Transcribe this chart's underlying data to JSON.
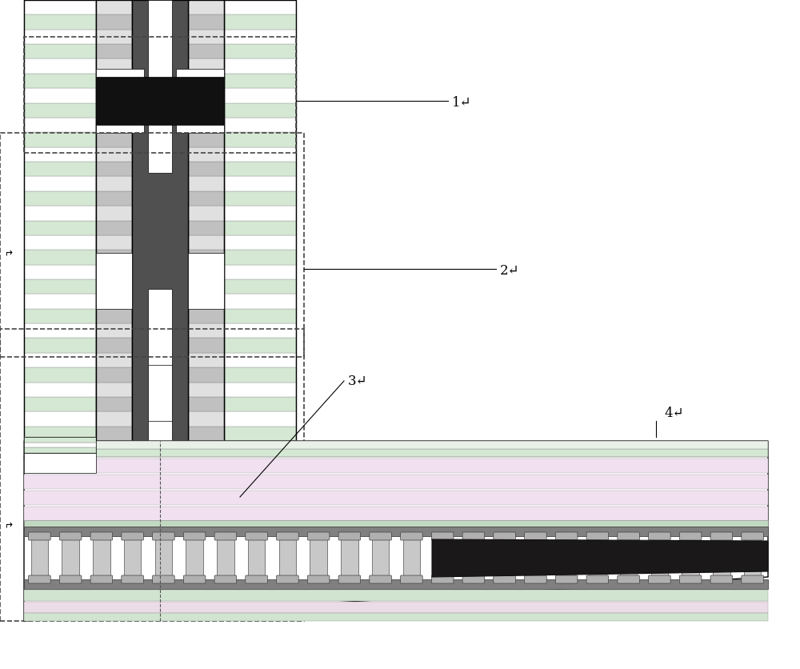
{
  "bg_color": "#ffffff",
  "lc": "#000000",
  "gray_dark": "#4a4a4a",
  "gray_mid": "#808080",
  "gray_light": "#b8b8b8",
  "green_stripe1": "#d4e8d4",
  "green_stripe2": "#ffffff",
  "pink_stripe1": "#e8d8e8",
  "pink_stripe2": "#ffffff",
  "dark_element": "#1a1a1a",
  "white": "#ffffff",
  "dashed_color": "#444444",
  "label1": "1",
  "label2": "2",
  "label3": "3",
  "label4": "4",
  "fig_w": 10.0,
  "fig_h": 8.36
}
